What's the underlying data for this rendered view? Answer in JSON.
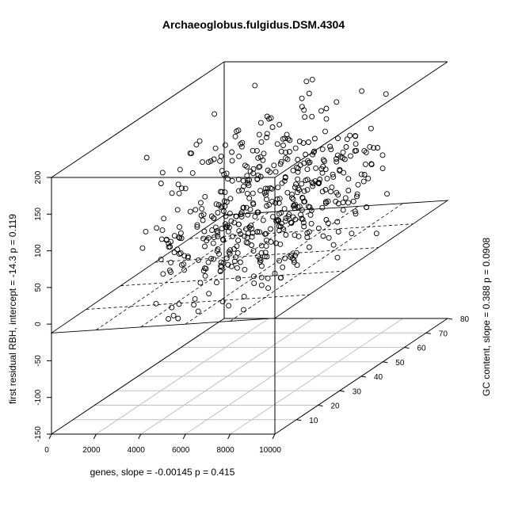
{
  "chart_data": {
    "type": "scatter",
    "title": "Archaeoglobus.fulgidus.DSM.4304",
    "xlabel": "genes, slope =  -0.00145 p =  0.415",
    "ylabel": "GC content, slope =  0.388 p =  0.0908",
    "zlabel": "first residual RBH, intercept =  -14.3 p =  0.119",
    "xlim": [
      0,
      10000
    ],
    "ylim": [
      0,
      80
    ],
    "zlim": [
      -150,
      200
    ],
    "x_ticks": [
      "0",
      "2000",
      "4000",
      "6000",
      "8000",
      "10000"
    ],
    "y_ticks": [
      "10",
      "20",
      "30",
      "40",
      "50",
      "60",
      "70",
      "80"
    ],
    "z_ticks": [
      "-150",
      "-100",
      "-50",
      "0",
      "50",
      "100",
      "150",
      "200"
    ],
    "fit_plane": {
      "intercept": -14.3,
      "slope_x": -0.00145,
      "slope_y": 0.388
    },
    "seed": 4304,
    "n_points": 520,
    "grid": true,
    "projection": "3d"
  }
}
